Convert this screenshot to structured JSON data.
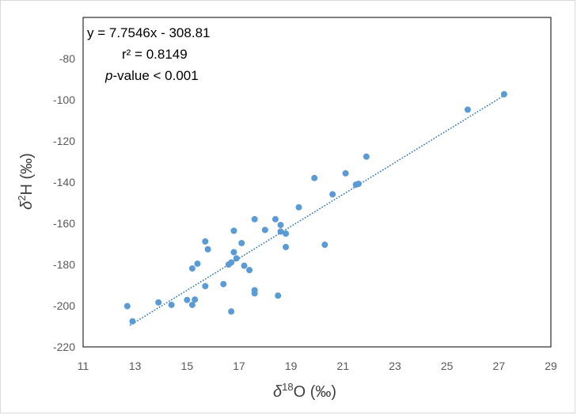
{
  "chart_data": {
    "type": "scatter",
    "title": "",
    "xlabel": {
      "prefix": "δ",
      "sup": "18",
      "suffix": "O (‰)"
    },
    "ylabel": {
      "prefix": "δ",
      "sup": "2",
      "suffix": "H (‰)"
    },
    "xlim": [
      11,
      29
    ],
    "ylim": [
      -220,
      -60
    ],
    "xticks": [
      11,
      13,
      15,
      17,
      19,
      21,
      23,
      25,
      27,
      29
    ],
    "yticks": [
      -80,
      -100,
      -120,
      -140,
      -160,
      -180,
      -200,
      -220
    ],
    "grid": false,
    "legend": "none",
    "marker_color": "#5b9bd5",
    "trendline": {
      "slope": 7.7546,
      "intercept": -308.81,
      "x_range": [
        12.8,
        27.2
      ],
      "style": "dotted",
      "color": "#2e75b6"
    },
    "annotations": {
      "equation": "y = 7.7546x - 308.81",
      "r2": "r² = 0.8149",
      "pvalue_italic": "p",
      "pvalue_rest": "-value < 0.001"
    },
    "points": [
      {
        "x": 12.7,
        "y": -200.2
      },
      {
        "x": 12.9,
        "y": -207.6
      },
      {
        "x": 13.9,
        "y": -198.4
      },
      {
        "x": 14.4,
        "y": -199.6
      },
      {
        "x": 15.0,
        "y": -197.2
      },
      {
        "x": 15.2,
        "y": -199.6
      },
      {
        "x": 15.3,
        "y": -197.0
      },
      {
        "x": 15.2,
        "y": -181.9
      },
      {
        "x": 15.4,
        "y": -179.6
      },
      {
        "x": 15.7,
        "y": -190.5
      },
      {
        "x": 15.7,
        "y": -168.8
      },
      {
        "x": 15.8,
        "y": -172.6
      },
      {
        "x": 16.4,
        "y": -189.5
      },
      {
        "x": 16.6,
        "y": -180.0
      },
      {
        "x": 16.7,
        "y": -179.0
      },
      {
        "x": 16.7,
        "y": -202.8
      },
      {
        "x": 16.8,
        "y": -163.6
      },
      {
        "x": 16.8,
        "y": -174.0
      },
      {
        "x": 16.9,
        "y": -177.0
      },
      {
        "x": 17.1,
        "y": -169.6
      },
      {
        "x": 17.2,
        "y": -180.6
      },
      {
        "x": 17.4,
        "y": -182.7
      },
      {
        "x": 17.6,
        "y": -158.0
      },
      {
        "x": 17.6,
        "y": -192.5
      },
      {
        "x": 17.6,
        "y": -194.0
      },
      {
        "x": 18.0,
        "y": -163.2
      },
      {
        "x": 18.4,
        "y": -158.0
      },
      {
        "x": 18.5,
        "y": -195.1
      },
      {
        "x": 18.6,
        "y": -160.8
      },
      {
        "x": 18.6,
        "y": -164.0
      },
      {
        "x": 18.8,
        "y": -165.0
      },
      {
        "x": 18.8,
        "y": -171.5
      },
      {
        "x": 19.3,
        "y": -152.2
      },
      {
        "x": 19.9,
        "y": -138.0
      },
      {
        "x": 20.3,
        "y": -170.4
      },
      {
        "x": 20.6,
        "y": -145.9
      },
      {
        "x": 21.1,
        "y": -135.7
      },
      {
        "x": 21.5,
        "y": -141.2
      },
      {
        "x": 21.6,
        "y": -140.8
      },
      {
        "x": 21.9,
        "y": -127.6
      },
      {
        "x": 25.8,
        "y": -104.8
      },
      {
        "x": 27.2,
        "y": -97.3
      }
    ]
  }
}
